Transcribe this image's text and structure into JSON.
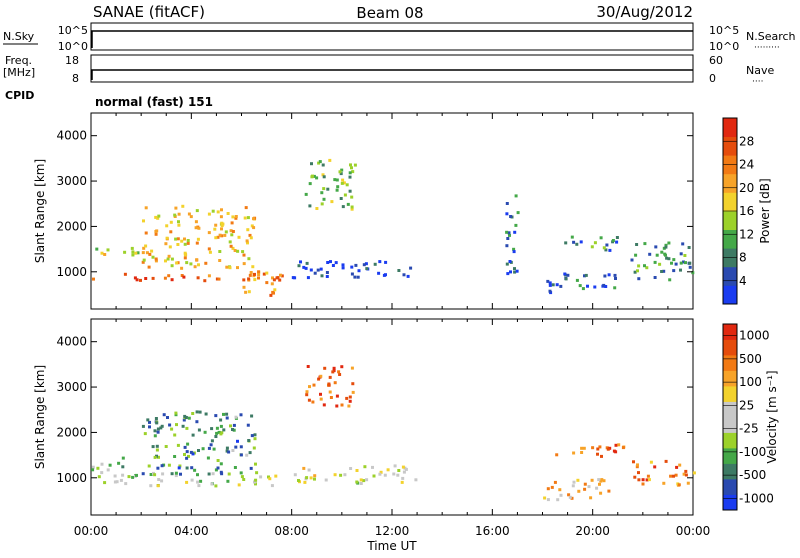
{
  "header": {
    "station": "SANAE (fitACF)",
    "beam": "Beam 08",
    "date": "30/Aug/2012"
  },
  "noise_panel": {
    "left_label": "N.Sky",
    "left_ticks": [
      "10^5",
      "10^0"
    ],
    "right_ticks": [
      "10^5",
      "10^0"
    ],
    "right_label": "N.Search",
    "right_label_line": "·········"
  },
  "freq_panel": {
    "left_label_1": "Freq.",
    "left_label_2": "[MHz]",
    "left_ticks": [
      "18",
      "8"
    ],
    "right_ticks": [
      "60",
      "0"
    ],
    "right_label": "Nave",
    "right_label_line": "····"
  },
  "cpid": {
    "label": "CPID",
    "text": "normal (fast) 151"
  },
  "x_axis": {
    "ticks": [
      "00:00",
      "04:00",
      "08:00",
      "12:00",
      "16:00",
      "20:00",
      "00:00"
    ],
    "label": "Time UT"
  },
  "chart_data": [
    {
      "type": "heatmap",
      "title": "Power",
      "ylabel": "Slant Range [km]",
      "xlabel": "Time UT",
      "y_ticks": [
        "1000",
        "2000",
        "3000",
        "4000"
      ],
      "ylim": [
        180,
        4500
      ],
      "xlim_hours": [
        0,
        24
      ],
      "colorbar": {
        "label": "Power [dB]",
        "ticks": [
          "4",
          "8",
          "12",
          "16",
          "20",
          "24",
          "28"
        ],
        "colors": [
          "#1a3cf0",
          "#2a4ab0",
          "#3d7a64",
          "#44a848",
          "#9cd12a",
          "#f3d22c",
          "#f7a328",
          "#f27a14",
          "#e54c0c",
          "#e12810"
        ]
      },
      "scatter_bands": [
        {
          "t_start": 0.0,
          "t_end": 7.6,
          "r_start": 820,
          "r_end": 1000,
          "level": 0.8
        },
        {
          "t_start": 0.0,
          "t_end": 2.0,
          "r_start": 1300,
          "r_end": 1550,
          "level": 0.5
        },
        {
          "t_start": 2.0,
          "t_end": 6.5,
          "r_start": 1100,
          "r_end": 2500,
          "level": 0.6
        },
        {
          "t_start": 6.0,
          "t_end": 7.5,
          "r_start": 500,
          "r_end": 1100,
          "level": 0.7
        },
        {
          "t_start": 8.5,
          "t_end": 10.5,
          "r_start": 2400,
          "r_end": 3500,
          "level": 0.35
        },
        {
          "t_start": 8.0,
          "t_end": 13.0,
          "r_start": 900,
          "r_end": 1300,
          "level": 0.1
        },
        {
          "t_start": 16.5,
          "t_end": 17.0,
          "r_start": 600,
          "r_end": 2800,
          "level": 0.2
        },
        {
          "t_start": 18.5,
          "t_end": 21.0,
          "r_start": 1500,
          "r_end": 1800,
          "level": 0.25
        },
        {
          "t_start": 21.5,
          "t_end": 24.0,
          "r_start": 850,
          "r_end": 1700,
          "level": 0.3
        },
        {
          "t_start": 18.0,
          "t_end": 21.0,
          "r_start": 550,
          "r_end": 1000,
          "level": 0.15
        }
      ]
    },
    {
      "type": "heatmap",
      "title": "Velocity",
      "ylabel": "Slant Range [km]",
      "xlabel": "Time UT",
      "y_ticks": [
        "1000",
        "2000",
        "3000",
        "4000"
      ],
      "ylim": [
        180,
        4500
      ],
      "xlim_hours": [
        0,
        24
      ],
      "colorbar": {
        "label": "Velocity [m s⁻¹]",
        "ticks": [
          "1000",
          "500",
          "100",
          "25",
          "-25",
          "-100",
          "-500",
          "-1000"
        ],
        "colors": [
          "#1a3cf0",
          "#2a4ab0",
          "#3d7a64",
          "#44a848",
          "#9cd12a",
          "#c8c8c8",
          "#c8c8c8",
          "#f3d22c",
          "#f7a328",
          "#f27a14",
          "#e54c0c",
          "#e12810"
        ]
      },
      "scatter_bands": [
        {
          "t_start": 0.0,
          "t_end": 1.5,
          "r_start": 900,
          "r_end": 1500,
          "level": 0.4
        },
        {
          "t_start": 1.5,
          "t_end": 7.5,
          "r_start": 850,
          "r_end": 1150,
          "level": 0.45
        },
        {
          "t_start": 2.0,
          "t_end": 6.5,
          "r_start": 1100,
          "r_end": 2500,
          "level": 0.25
        },
        {
          "t_start": 8.5,
          "t_end": 10.5,
          "r_start": 2600,
          "r_end": 3500,
          "level": 0.85
        },
        {
          "t_start": 8.0,
          "t_end": 13.0,
          "r_start": 900,
          "r_end": 1300,
          "level": 0.5
        },
        {
          "t_start": 18.5,
          "t_end": 21.5,
          "r_start": 1500,
          "r_end": 1800,
          "level": 0.85
        },
        {
          "t_start": 21.5,
          "t_end": 24.0,
          "r_start": 850,
          "r_end": 1400,
          "level": 0.8
        },
        {
          "t_start": 18.0,
          "t_end": 21.0,
          "r_start": 550,
          "r_end": 1000,
          "level": 0.65
        }
      ]
    }
  ]
}
